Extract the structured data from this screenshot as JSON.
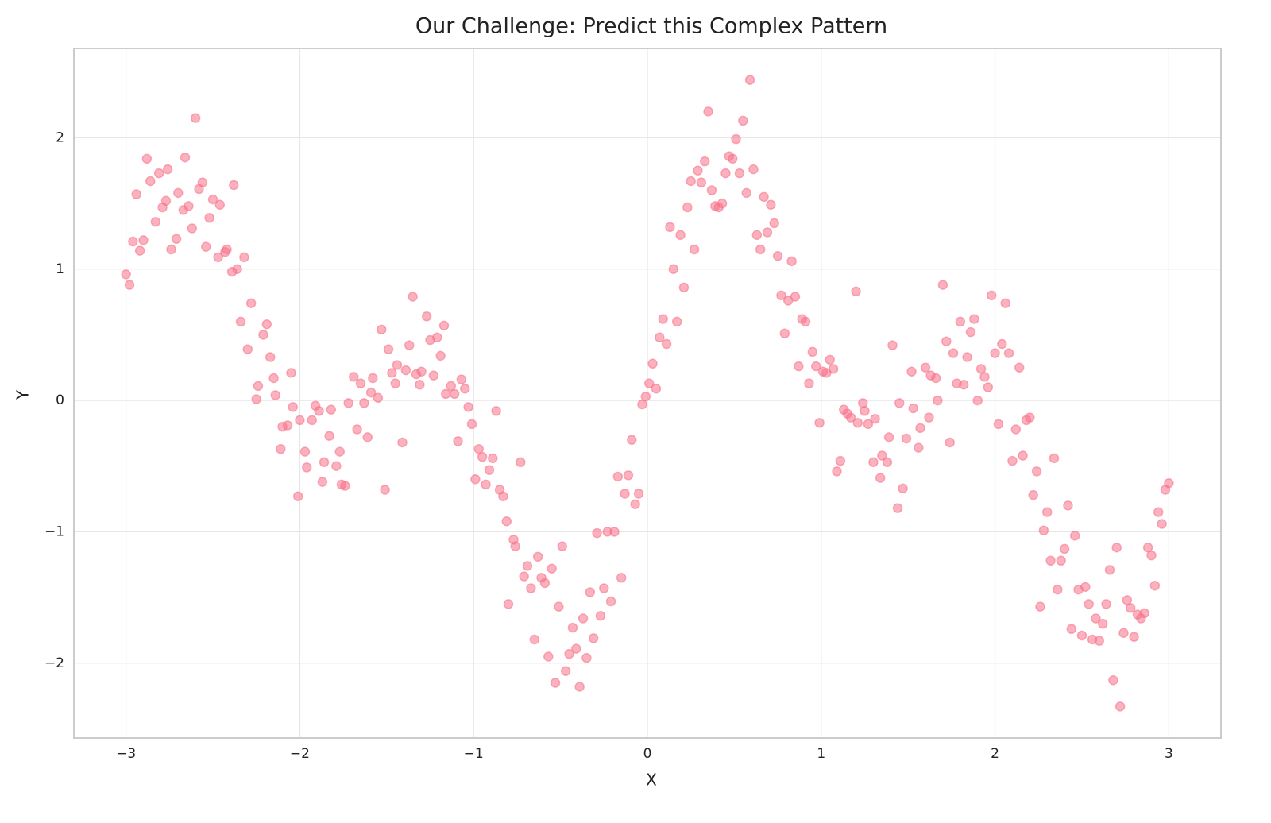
{
  "chart_data": {
    "type": "scatter",
    "title": "Our Challenge: Predict this Complex Pattern",
    "x_label": "X",
    "y_label": "Y",
    "color": "#f77189",
    "opacity": 0.55,
    "grid": true,
    "xlim": [
      -3.3,
      3.3
    ],
    "ylim": [
      -2.57,
      2.68
    ],
    "xticks": [
      {
        "value": -3,
        "label": "−3"
      },
      {
        "value": -2,
        "label": "−2"
      },
      {
        "value": -1,
        "label": "−1"
      },
      0,
      1,
      2,
      3
    ],
    "yticks": [
      {
        "value": -2,
        "label": "−2"
      },
      {
        "value": -1,
        "label": "−1"
      },
      0,
      1,
      2
    ],
    "x": [
      -3.0,
      -2.98,
      -2.96,
      -2.94,
      -2.92,
      -2.9,
      -2.88,
      -2.86,
      -2.83,
      -2.81,
      -2.79,
      -2.77,
      -2.76,
      -2.74,
      -2.71,
      -2.7,
      -2.67,
      -2.66,
      -2.64,
      -2.62,
      -2.6,
      -2.58,
      -2.56,
      -2.54,
      -2.52,
      -2.5,
      -2.47,
      -2.46,
      -2.43,
      -2.42,
      -2.39,
      -2.38,
      -2.36,
      -2.34,
      -2.32,
      -2.3,
      -2.28,
      -2.25,
      -2.24,
      -2.21,
      -2.19,
      -2.17,
      -2.15,
      -2.14,
      -2.11,
      -2.1,
      -2.07,
      -2.05,
      -2.04,
      -2.01,
      -2.0,
      -1.97,
      -1.96,
      -1.93,
      -1.91,
      -1.89,
      -1.87,
      -1.86,
      -1.83,
      -1.82,
      -1.79,
      -1.77,
      -1.76,
      -1.74,
      -1.72,
      -1.69,
      -1.67,
      -1.65,
      -1.63,
      -1.61,
      -1.59,
      -1.58,
      -1.55,
      -1.53,
      -1.51,
      -1.49,
      -1.47,
      -1.45,
      -1.44,
      -1.41,
      -1.39,
      -1.37,
      -1.35,
      -1.33,
      -1.31,
      -1.3,
      -1.27,
      -1.25,
      -1.23,
      -1.21,
      -1.19,
      -1.17,
      -1.16,
      -1.13,
      -1.11,
      -1.09,
      -1.07,
      -1.05,
      -1.03,
      -1.01,
      -0.99,
      -0.97,
      -0.95,
      -0.93,
      -0.91,
      -0.89,
      -0.87,
      -0.85,
      -0.83,
      -0.81,
      -0.8,
      -0.77,
      -0.76,
      -0.73,
      -0.71,
      -0.69,
      -0.67,
      -0.65,
      -0.63,
      -0.61,
      -0.59,
      -0.57,
      -0.55,
      -0.53,
      -0.51,
      -0.49,
      -0.47,
      -0.45,
      -0.43,
      -0.41,
      -0.39,
      -0.37,
      -0.35,
      -0.33,
      -0.31,
      -0.29,
      -0.27,
      -0.25,
      -0.23,
      -0.21,
      -0.19,
      -0.17,
      -0.15,
      -0.13,
      -0.11,
      -0.09,
      -0.07,
      -0.05,
      -0.03,
      -0.01,
      0.01,
      0.03,
      0.05,
      0.07,
      0.09,
      0.11,
      0.13,
      0.15,
      0.17,
      0.19,
      0.21,
      0.23,
      0.25,
      0.27,
      0.29,
      0.31,
      0.33,
      0.35,
      0.37,
      0.39,
      0.41,
      0.43,
      0.45,
      0.47,
      0.49,
      0.51,
      0.53,
      0.55,
      0.57,
      0.59,
      0.61,
      0.63,
      0.65,
      0.67,
      0.69,
      0.71,
      0.73,
      0.75,
      0.77,
      0.79,
      0.81,
      0.83,
      0.85,
      0.87,
      0.89,
      0.91,
      0.93,
      0.95,
      0.97,
      0.99,
      1.01,
      1.03,
      1.05,
      1.07,
      1.09,
      1.11,
      1.13,
      1.15,
      1.17,
      1.2,
      1.21,
      1.24,
      1.25,
      1.27,
      1.3,
      1.31,
      1.34,
      1.35,
      1.38,
      1.39,
      1.41,
      1.44,
      1.45,
      1.47,
      1.49,
      1.52,
      1.53,
      1.56,
      1.57,
      1.6,
      1.62,
      1.63,
      1.66,
      1.67,
      1.7,
      1.72,
      1.74,
      1.76,
      1.78,
      1.8,
      1.82,
      1.84,
      1.86,
      1.88,
      1.9,
      1.92,
      1.94,
      1.96,
      1.98,
      2.0,
      2.02,
      2.04,
      2.06,
      2.08,
      2.1,
      2.12,
      2.14,
      2.16,
      2.18,
      2.2,
      2.22,
      2.24,
      2.26,
      2.28,
      2.3,
      2.32,
      2.34,
      2.36,
      2.38,
      2.4,
      2.42,
      2.44,
      2.46,
      2.48,
      2.5,
      2.52,
      2.54,
      2.56,
      2.58,
      2.6,
      2.62,
      2.64,
      2.66,
      2.68,
      2.7,
      2.72,
      2.74,
      2.76,
      2.78,
      2.8,
      2.82,
      2.84,
      2.86,
      2.88,
      2.9,
      2.92,
      2.94,
      2.96,
      2.98,
      3.0
    ],
    "values": [
      0.96,
      0.88,
      1.21,
      1.57,
      1.14,
      1.22,
      1.84,
      1.67,
      1.36,
      1.73,
      1.47,
      1.52,
      1.76,
      1.15,
      1.23,
      1.58,
      1.45,
      1.85,
      1.48,
      1.31,
      2.15,
      1.61,
      1.66,
      1.17,
      1.39,
      1.53,
      1.09,
      1.49,
      1.13,
      1.15,
      0.98,
      1.64,
      1.0,
      0.6,
      1.09,
      0.39,
      0.74,
      0.01,
      0.11,
      0.5,
      0.58,
      0.33,
      0.17,
      0.04,
      -0.37,
      -0.2,
      -0.19,
      0.21,
      -0.05,
      -0.73,
      -0.15,
      -0.39,
      -0.51,
      -0.15,
      -0.04,
      -0.08,
      -0.62,
      -0.47,
      -0.27,
      -0.07,
      -0.5,
      -0.39,
      -0.64,
      -0.65,
      -0.02,
      0.18,
      -0.22,
      0.13,
      -0.02,
      -0.28,
      0.06,
      0.17,
      0.02,
      0.54,
      -0.68,
      0.39,
      0.21,
      0.13,
      0.27,
      -0.32,
      0.23,
      0.42,
      0.79,
      0.2,
      0.12,
      0.22,
      0.64,
      0.46,
      0.19,
      0.48,
      0.34,
      0.57,
      0.05,
      0.11,
      0.05,
      -0.31,
      0.16,
      0.09,
      -0.05,
      -0.18,
      -0.6,
      -0.37,
      -0.43,
      -0.64,
      -0.53,
      -0.44,
      -0.08,
      -0.68,
      -0.73,
      -0.92,
      -1.55,
      -1.06,
      -1.11,
      -0.47,
      -1.34,
      -1.26,
      -1.43,
      -1.82,
      -1.19,
      -1.35,
      -1.39,
      -1.95,
      -1.28,
      -2.15,
      -1.57,
      -1.11,
      -2.06,
      -1.93,
      -1.73,
      -1.89,
      -2.18,
      -1.66,
      -1.96,
      -1.46,
      -1.81,
      -1.01,
      -1.64,
      -1.43,
      -1.0,
      -1.53,
      -1.0,
      -0.58,
      -1.35,
      -0.71,
      -0.57,
      -0.3,
      -0.79,
      -0.71,
      -0.03,
      0.03,
      0.13,
      0.28,
      0.09,
      0.48,
      0.62,
      0.43,
      1.32,
      1.0,
      0.6,
      1.26,
      0.86,
      1.47,
      1.67,
      1.15,
      1.75,
      1.66,
      1.82,
      2.2,
      1.6,
      1.48,
      1.47,
      1.5,
      1.73,
      1.86,
      1.84,
      1.99,
      1.73,
      2.13,
      1.58,
      2.44,
      1.76,
      1.26,
      1.15,
      1.55,
      1.28,
      1.49,
      1.35,
      1.1,
      0.8,
      0.51,
      0.76,
      1.06,
      0.79,
      0.26,
      0.62,
      0.6,
      0.13,
      0.37,
      0.26,
      -0.17,
      0.22,
      0.21,
      0.31,
      0.24,
      -0.54,
      -0.46,
      -0.07,
      -0.1,
      -0.13,
      0.83,
      -0.17,
      -0.02,
      -0.08,
      -0.18,
      -0.47,
      -0.14,
      -0.59,
      -0.42,
      -0.47,
      -0.28,
      0.42,
      -0.82,
      -0.02,
      -0.67,
      -0.29,
      0.22,
      -0.06,
      -0.36,
      -0.21,
      0.25,
      -0.13,
      0.19,
      0.17,
      0.0,
      0.88,
      0.45,
      -0.32,
      0.36,
      0.13,
      0.6,
      0.12,
      0.33,
      0.52,
      0.62,
      0.0,
      0.24,
      0.18,
      0.1,
      0.8,
      0.36,
      -0.18,
      0.43,
      0.74,
      0.36,
      -0.46,
      -0.22,
      0.25,
      -0.42,
      -0.15,
      -0.13,
      -0.72,
      -0.54,
      -1.57,
      -0.99,
      -0.85,
      -1.22,
      -0.44,
      -1.44,
      -1.22,
      -1.13,
      -0.8,
      -1.74,
      -1.03,
      -1.44,
      -1.79,
      -1.42,
      -1.55,
      -1.82,
      -1.66,
      -1.83,
      -1.7,
      -1.55,
      -1.29,
      -2.13,
      -1.12,
      -2.33,
      -1.77,
      -1.52,
      -1.58,
      -1.8,
      -1.63,
      -1.66,
      -1.62,
      -1.12,
      -1.18,
      -1.41,
      -0.85,
      -0.94,
      -0.68,
      -0.63
    ]
  }
}
